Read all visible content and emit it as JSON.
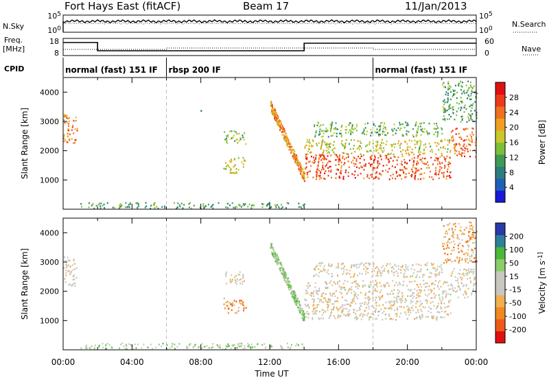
{
  "header": {
    "station": "Fort Hays East (fitACF)",
    "beam": "Beam 17",
    "date": "11/Jan/2013"
  },
  "left_labels": {
    "nsky": "N.Sky",
    "freq_top": "Freq.",
    "freq_unit": "[MHz]",
    "cpid": "CPID"
  },
  "right_labels": {
    "nsearch": "N.Search",
    "nave": "Nave"
  },
  "noise_axis": {
    "top": "10^5",
    "bottom": "10^0"
  },
  "freq_axis": {
    "top": "18",
    "bottom": "8"
  },
  "nave_axis": {
    "top": "60",
    "bottom": "0"
  },
  "cpid_segments": [
    {
      "label": "normal (fast) 151 IF",
      "start_hour": 0
    },
    {
      "label": "rbsp 200 IF",
      "start_hour": 6
    },
    {
      "label": "normal (fast) 151 IF",
      "start_hour": 18
    }
  ],
  "colors": {
    "power": [
      "#1a1ad6",
      "#1f5fb8",
      "#2e7d7d",
      "#3f9a55",
      "#7dbf3a",
      "#c8c82a",
      "#f0a020",
      "#f07020",
      "#ee3a1a",
      "#e01010"
    ],
    "velocity": [
      "#e01010",
      "#ee5a1a",
      "#f08a20",
      "#f0b050",
      "#c8c8c0",
      "#c8c8c0",
      "#8ccc6a",
      "#4cb83a",
      "#2e7f9a",
      "#2a3aa8"
    ]
  },
  "chart_data": [
    {
      "type": "heatmap",
      "name": "power",
      "ylabel": "Slant Range [km]",
      "colorbar_label": "Power [dB]",
      "colorbar_ticks": [
        "28",
        "24",
        "20",
        "16",
        "12",
        "8",
        "4"
      ],
      "yticks": [
        "4000",
        "3000",
        "2000",
        "1000"
      ],
      "ylim": [
        0,
        4500
      ],
      "xlim": [
        0,
        24
      ],
      "regions": [
        {
          "t0": 0.0,
          "t1": 0.8,
          "r0": 2200,
          "r1": 3250,
          "level": 0.75
        },
        {
          "t0": 7.9,
          "t1": 8.0,
          "r0": 3200,
          "r1": 3500,
          "level": 0.3
        },
        {
          "t0": 9.3,
          "t1": 10.6,
          "r0": 2250,
          "r1": 2700,
          "level": 0.45
        },
        {
          "t0": 9.3,
          "t1": 10.6,
          "r0": 1250,
          "r1": 1800,
          "level": 0.55
        },
        {
          "t0": 12.0,
          "t1": 14.0,
          "r0": 1100,
          "r1": 3600,
          "level": 0.7,
          "slope": -1
        },
        {
          "t0": 14.0,
          "t1": 22.5,
          "r0": 1050,
          "r1": 1900,
          "level": 0.85
        },
        {
          "t0": 14.0,
          "t1": 22.5,
          "r0": 1900,
          "r1": 2400,
          "level": 0.55
        },
        {
          "t0": 14.5,
          "t1": 22.0,
          "r0": 2500,
          "r1": 3000,
          "level": 0.4
        },
        {
          "t0": 22.5,
          "t1": 24.0,
          "r0": 1800,
          "r1": 2800,
          "level": 0.8
        },
        {
          "t0": 22.0,
          "t1": 24.0,
          "r0": 3000,
          "r1": 4400,
          "level": 0.35
        },
        {
          "t0": 1.0,
          "t1": 14.0,
          "r0": 50,
          "r1": 250,
          "level": 0.35
        }
      ]
    },
    {
      "type": "heatmap",
      "name": "velocity",
      "xlabel": "Time UT",
      "ylabel": "Slant Range [km]",
      "colorbar_label": "Velocity [m s^-1]",
      "colorbar_ticks": [
        "200",
        "100",
        "50",
        "15",
        "-15",
        "-50",
        "-100",
        "-200"
      ],
      "xticks": [
        "00:00",
        "04:00",
        "08:00",
        "12:00",
        "16:00",
        "20:00",
        "00:00"
      ],
      "yticks": [
        "4000",
        "3000",
        "2000",
        "1000"
      ],
      "ylim": [
        0,
        4500
      ],
      "xlim": [
        0,
        24
      ],
      "regions": [
        {
          "t0": 0.0,
          "t1": 0.8,
          "r0": 2200,
          "r1": 3250,
          "level": 0.45
        },
        {
          "t0": 9.3,
          "t1": 10.6,
          "r0": 2250,
          "r1": 2700,
          "level": 0.45
        },
        {
          "t0": 9.3,
          "t1": 10.6,
          "r0": 1250,
          "r1": 1800,
          "level": 0.25
        },
        {
          "t0": 12.0,
          "t1": 14.0,
          "r0": 1100,
          "r1": 3600,
          "level": 0.65,
          "slope": -1
        },
        {
          "t0": 14.0,
          "t1": 22.5,
          "r0": 1050,
          "r1": 2400,
          "level": 0.45
        },
        {
          "t0": 14.5,
          "t1": 22.0,
          "r0": 2500,
          "r1": 3000,
          "level": 0.45
        },
        {
          "t0": 22.5,
          "t1": 24.0,
          "r0": 1800,
          "r1": 2800,
          "level": 0.45
        },
        {
          "t0": 22.0,
          "t1": 24.0,
          "r0": 3000,
          "r1": 4400,
          "level": 0.3
        },
        {
          "t0": 1.0,
          "t1": 14.0,
          "r0": 50,
          "r1": 250,
          "level": 0.6
        }
      ]
    }
  ]
}
